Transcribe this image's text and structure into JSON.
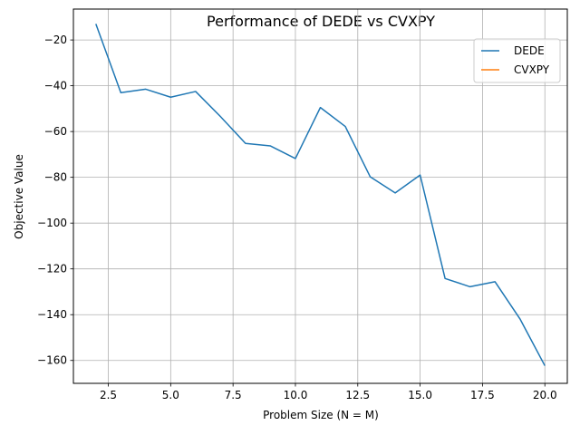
{
  "chart_data": {
    "type": "line",
    "title": "Performance of DEDE vs CVXPY",
    "xlabel": "Problem Size (N = M)",
    "ylabel": "Objective Value",
    "xlim": [
      1.1,
      20.9
    ],
    "ylim": [
      -170,
      -6.5
    ],
    "xticks": [
      2.5,
      5.0,
      7.5,
      10.0,
      12.5,
      15.0,
      17.5,
      20.0
    ],
    "xtick_labels": [
      "2.5",
      "5.0",
      "7.5",
      "10.0",
      "12.5",
      "15.0",
      "17.5",
      "20.0"
    ],
    "yticks": [
      -20,
      -40,
      -60,
      -80,
      -100,
      -120,
      -140,
      -160
    ],
    "ytick_labels": [
      "−20",
      "−40",
      "−60",
      "−80",
      "−100",
      "−120",
      "−140",
      "−160"
    ],
    "grid": true,
    "legend_position": "top-right",
    "series": [
      {
        "name": "DEDE",
        "color": "#1f77b4",
        "x": [
          2,
          3,
          4,
          5,
          6,
          7,
          8,
          9,
          10,
          11,
          12,
          13,
          14,
          15,
          16,
          17,
          18,
          19,
          20
        ],
        "y": [
          -13,
          -43,
          -41.5,
          -45,
          -42.5,
          -53.5,
          -65.2,
          -66.3,
          -71.8,
          -49.5,
          -57.8,
          -79.8,
          -86.8,
          -79,
          -124.2,
          -127.8,
          -125.6,
          -141.8,
          -162.3
        ]
      },
      {
        "name": "CVXPY",
        "color": "#ff7f0e",
        "x": [],
        "y": []
      }
    ]
  }
}
